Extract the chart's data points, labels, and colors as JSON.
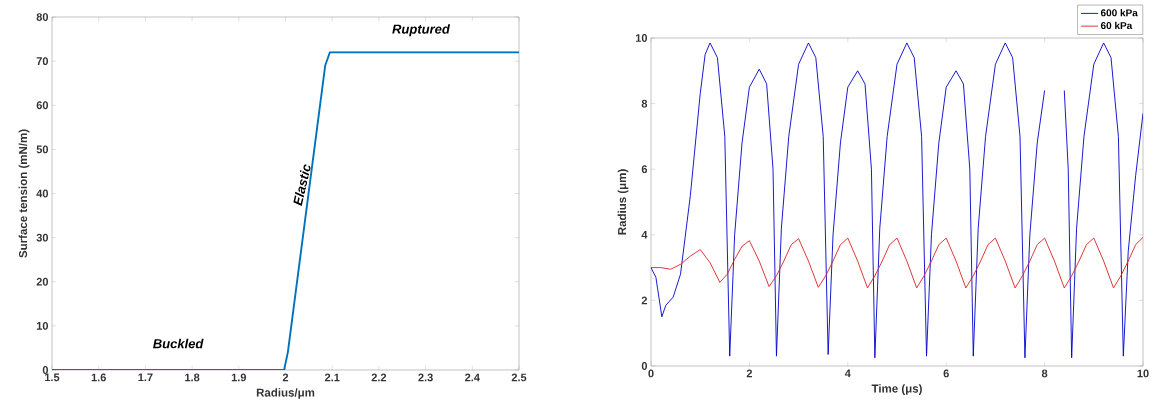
{
  "chart_data": [
    {
      "type": "line",
      "xlabel": "Radius/μm",
      "ylabel": "Surface tension (mN/m)",
      "color": "#0072bd",
      "x": [
        1.5,
        1.997,
        2.005,
        2.085,
        2.095,
        2.5
      ],
      "values": [
        0,
        0,
        4,
        69,
        72,
        72
      ],
      "xlim": [
        1.5,
        2.5
      ],
      "ylim": [
        0,
        80
      ],
      "xticks": [
        1.5,
        1.6,
        1.7,
        1.8,
        1.9,
        2,
        2.1,
        2.2,
        2.3,
        2.4,
        2.5
      ],
      "yticks": [
        0,
        10,
        20,
        30,
        40,
        50,
        60,
        70,
        80
      ],
      "annotations": [
        "Buckled",
        "Elastic",
        "Ruptured"
      ]
    },
    {
      "type": "line",
      "xlabel": "Time (μs)",
      "ylabel": "Radius (μm)",
      "legend": "top right",
      "xlim": [
        0,
        10
      ],
      "ylim": [
        0,
        10
      ],
      "xticks": [
        0,
        2,
        4,
        6,
        8,
        10
      ],
      "yticks": [
        0,
        2,
        4,
        6,
        8,
        10
      ],
      "series": [
        {
          "name": "600 kPa",
          "color": "#0000cc",
          "x": [
            0,
            0.1,
            0.22,
            0.3,
            0.45,
            0.6,
            0.8,
            1.0,
            1.1,
            1.2,
            1.35,
            1.5,
            1.6,
            1.7,
            1.85,
            2.0,
            2.2,
            2.35,
            2.48,
            2.55,
            2.65,
            2.8,
            3.0,
            3.2,
            3.35,
            3.5,
            3.6,
            3.7,
            3.85,
            4.0,
            4.2,
            4.35,
            4.48,
            4.55,
            4.65,
            4.8,
            5.0,
            5.2,
            5.35,
            5.5,
            5.6,
            5.7,
            5.85,
            6.0,
            6.2,
            6.35,
            6.48,
            6.55,
            6.65,
            6.8,
            7.0,
            7.2,
            7.35,
            7.5,
            7.6,
            7.7,
            7.85,
            8.0,
            8.2,
            8.4,
            8.48,
            8.55,
            8.65,
            8.8,
            9.0,
            9.2,
            9.35,
            9.5,
            9.6,
            9.7,
            9.85,
            10
          ],
          "values": [
            3.0,
            2.7,
            1.5,
            1.85,
            2.1,
            2.8,
            5.2,
            8.3,
            9.5,
            9.85,
            9.4,
            7.0,
            0.3,
            4.0,
            6.8,
            8.5,
            9.05,
            8.6,
            6.0,
            0.3,
            4.2,
            7.0,
            9.2,
            9.85,
            9.4,
            7.0,
            0.35,
            4.0,
            6.8,
            8.5,
            9.0,
            8.6,
            6.0,
            0.25,
            4.2,
            7.0,
            9.2,
            9.85,
            9.4,
            7.0,
            0.3,
            4.0,
            6.8,
            8.5,
            9.0,
            8.6,
            6.0,
            0.3,
            4.2,
            7.0,
            9.2,
            9.85,
            9.4,
            7.0,
            0.25,
            4.0,
            6.8,
            8.4,
            null,
            8.4,
            6.0,
            0.25,
            4.2,
            7.0,
            9.2,
            9.85,
            9.4,
            7.0,
            0.3,
            3.5,
            5.8,
            7.7
          ]
        },
        {
          "name": "60 kPa",
          "color": "#dd2222",
          "x": [
            0,
            0.2,
            0.4,
            0.6,
            0.8,
            1.0,
            1.2,
            1.4,
            1.55,
            1.7,
            1.85,
            2.0,
            2.2,
            2.4,
            2.55,
            2.7,
            2.85,
            3.0,
            3.2,
            3.4,
            3.55,
            3.7,
            3.85,
            4.0,
            4.2,
            4.4,
            4.55,
            4.7,
            4.85,
            5.0,
            5.2,
            5.4,
            5.55,
            5.7,
            5.85,
            6.0,
            6.2,
            6.4,
            6.55,
            6.7,
            6.85,
            7.0,
            7.2,
            7.4,
            7.55,
            7.7,
            7.85,
            8.0,
            8.2,
            8.4,
            8.55,
            8.7,
            8.85,
            9.0,
            9.2,
            9.4,
            9.55,
            9.7,
            9.85,
            10
          ],
          "values": [
            3.0,
            3.0,
            2.95,
            3.1,
            3.35,
            3.55,
            3.15,
            2.55,
            2.8,
            3.25,
            3.65,
            3.82,
            3.2,
            2.42,
            2.75,
            3.2,
            3.7,
            3.88,
            3.2,
            2.4,
            2.75,
            3.2,
            3.7,
            3.9,
            3.2,
            2.38,
            2.75,
            3.2,
            3.7,
            3.9,
            3.2,
            2.38,
            2.75,
            3.2,
            3.7,
            3.9,
            3.2,
            2.38,
            2.75,
            3.2,
            3.7,
            3.9,
            3.2,
            2.38,
            2.75,
            3.2,
            3.7,
            3.9,
            3.2,
            2.38,
            2.75,
            3.2,
            3.7,
            3.9,
            3.2,
            2.38,
            2.75,
            3.2,
            3.7,
            3.92
          ]
        }
      ]
    }
  ]
}
